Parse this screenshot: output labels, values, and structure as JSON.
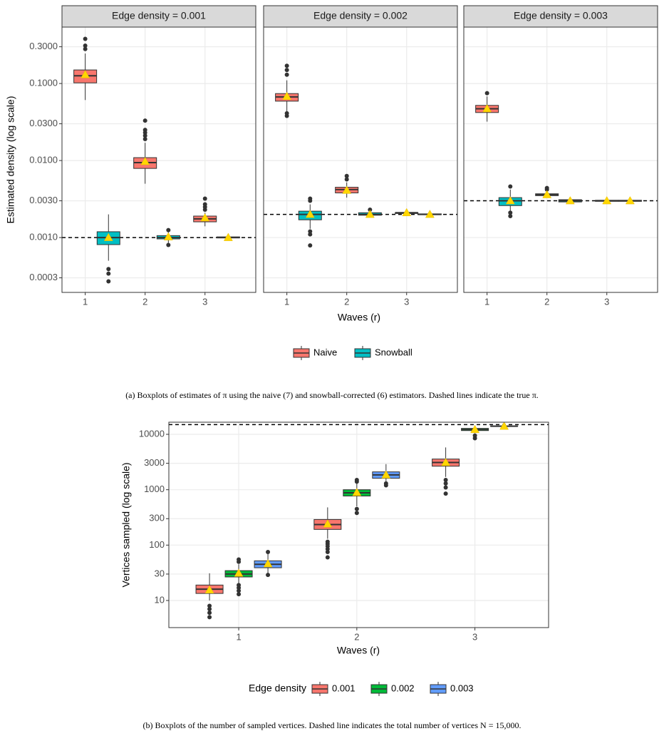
{
  "chart_data": [
    {
      "type": "boxplot",
      "log": true,
      "grid": true,
      "legend": "bottom",
      "y_label": "Estimated density (log scale)",
      "x_label": "Waves (r)",
      "caption": "(a) Boxplots of estimates of π using the naive (7) and snowball-corrected (6) estimators. Dashed lines indicate the true π.",
      "categories": [
        "1",
        "2",
        "3"
      ],
      "ylim": [
        0.000194,
        0.54
      ],
      "yticks": [
        {
          "value": 0.0003,
          "label": "0.0003"
        },
        {
          "value": 0.001,
          "label": "0.0010"
        },
        {
          "value": 0.003,
          "label": "0.0030"
        },
        {
          "value": 0.01,
          "label": "0.0100"
        },
        {
          "value": 0.03,
          "label": "0.0300"
        },
        {
          "value": 0.1,
          "label": "0.1000"
        },
        {
          "value": 0.3,
          "label": "0.3000"
        }
      ],
      "series": [
        {
          "name": "Naive",
          "color": "#F8766D"
        },
        {
          "name": "Snowball",
          "color": "#00BFC4"
        }
      ],
      "facets": [
        {
          "title": "Edge density = 0.001",
          "reference": 0.001,
          "values": [
            [
              {
                "min": 0.061,
                "q1": 0.102,
                "median": 0.126,
                "q3": 0.15,
                "max": 0.245,
                "mean": 0.13,
                "outliers": [
                  0.28,
                  0.31,
                  0.38
                ]
              },
              {
                "min": 0.005,
                "q1": 0.0079,
                "median": 0.0094,
                "q3": 0.0109,
                "max": 0.017,
                "mean": 0.0097,
                "outliers": [
                  0.019,
                  0.021,
                  0.023,
                  0.025,
                  0.033
                ]
              },
              {
                "min": 0.0014,
                "q1": 0.0016,
                "median": 0.00175,
                "q3": 0.0019,
                "max": 0.0021,
                "mean": 0.0018,
                "outliers": [
                  0.0023,
                  0.0025,
                  0.0027,
                  0.0032
                ]
              }
            ],
            [
              {
                "min": 0.0005,
                "q1": 0.00081,
                "median": 0.001,
                "q3": 0.00119,
                "max": 0.002,
                "mean": 0.001,
                "outliers": [
                  0.00027,
                  0.00034,
                  0.00039
                ]
              },
              {
                "min": 0.00085,
                "q1": 0.00096,
                "median": 0.001,
                "q3": 0.00106,
                "max": 0.0012,
                "mean": 0.00102,
                "outliers": [
                  0.0008,
                  0.00125
                ]
              },
              {
                "min": 0.00096,
                "q1": 0.00099,
                "median": 0.001,
                "q3": 0.00102,
                "max": 0.00106,
                "mean": 0.001,
                "outliers": []
              }
            ]
          ]
        },
        {
          "title": "Edge density = 0.002",
          "reference": 0.002,
          "values": [
            [
              {
                "min": 0.043,
                "q1": 0.059,
                "median": 0.067,
                "q3": 0.074,
                "max": 0.11,
                "mean": 0.068,
                "outliers": [
                  0.038,
                  0.041,
                  0.13,
                  0.15,
                  0.17
                ]
              },
              {
                "min": 0.0033,
                "q1": 0.0038,
                "median": 0.0042,
                "q3": 0.0045,
                "max": 0.0052,
                "mean": 0.0041,
                "outliers": [
                  0.0057,
                  0.0063
                ]
              },
              {
                "min": 0.002,
                "q1": 0.00205,
                "median": 0.0021,
                "q3": 0.0021,
                "max": 0.0022,
                "mean": 0.0021,
                "outliers": []
              }
            ],
            [
              {
                "min": 0.0013,
                "q1": 0.0017,
                "median": 0.002,
                "q3": 0.0022,
                "max": 0.0027,
                "mean": 0.002,
                "outliers": [
                  0.00079,
                  0.0011,
                  0.0012,
                  0.003,
                  0.0032
                ]
              },
              {
                "min": 0.00185,
                "q1": 0.00195,
                "median": 0.002,
                "q3": 0.0021,
                "max": 0.0022,
                "mean": 0.002,
                "outliers": [
                  0.0023
                ]
              },
              {
                "min": 0.00195,
                "q1": 0.00198,
                "median": 0.002,
                "q3": 0.00203,
                "max": 0.00207,
                "mean": 0.002,
                "outliers": []
              }
            ]
          ]
        },
        {
          "title": "Edge density = 0.003",
          "reference": 0.003,
          "values": [
            [
              {
                "min": 0.032,
                "q1": 0.042,
                "median": 0.047,
                "q3": 0.052,
                "max": 0.068,
                "mean": 0.047,
                "outliers": [
                  0.075
                ]
              },
              {
                "min": 0.0034,
                "q1": 0.0035,
                "median": 0.0036,
                "q3": 0.0037,
                "max": 0.004,
                "mean": 0.0036,
                "outliers": [
                  0.0042,
                  0.0044
                ]
              },
              {
                "min": 0.0029,
                "q1": 0.00295,
                "median": 0.003,
                "q3": 0.00305,
                "max": 0.0031,
                "mean": 0.003,
                "outliers": []
              }
            ],
            [
              {
                "min": 0.0022,
                "q1": 0.0026,
                "median": 0.003,
                "q3": 0.0033,
                "max": 0.0042,
                "mean": 0.003,
                "outliers": [
                  0.0019,
                  0.0021,
                  0.0046
                ]
              },
              {
                "min": 0.0028,
                "q1": 0.0029,
                "median": 0.003,
                "q3": 0.0031,
                "max": 0.0032,
                "mean": 0.003,
                "outliers": []
              },
              {
                "min": 0.0029,
                "q1": 0.00295,
                "median": 0.003,
                "q3": 0.00305,
                "max": 0.0031,
                "mean": 0.003,
                "outliers": []
              }
            ]
          ]
        }
      ]
    },
    {
      "type": "boxplot",
      "log": true,
      "grid": true,
      "legend": "bottom",
      "y_label": "Vertices sampled (log scale)",
      "x_label": "Waves (r)",
      "legend_title": "Edge density",
      "caption": "(b) Boxplots of the number of sampled vertices. Dashed line indicates the total number of vertices N = 15,000.",
      "categories": [
        "1",
        "2",
        "3"
      ],
      "reference": 15000,
      "ylim": [
        3.24,
        16560
      ],
      "yticks": [
        10,
        30,
        100,
        300,
        1000,
        3000,
        10000
      ],
      "series": [
        {
          "name": "0.001",
          "color": "#F8766D",
          "values": [
            {
              "min": 10,
              "q1": 13.4,
              "median": 16,
              "q3": 19,
              "max": 31,
              "mean": 15.5,
              "outliers": [
                5,
                6,
                7,
                8
              ]
            },
            {
              "min": 130,
              "q1": 192,
              "median": 235,
              "q3": 290,
              "max": 480,
              "mean": 240,
              "outliers": [
                60,
                75,
                85,
                95,
                105,
                115
              ]
            },
            {
              "min": 1700,
              "q1": 2660,
              "median": 3100,
              "q3": 3580,
              "max": 5800,
              "mean": 3100,
              "outliers": [
                850,
                1100,
                1300,
                1500
              ]
            }
          ]
        },
        {
          "name": "0.002",
          "color": "#00BA38",
          "values": [
            {
              "min": 20,
              "q1": 26.6,
              "median": 30,
              "q3": 34.6,
              "max": 45,
              "mean": 31,
              "outliers": [
                13,
                15,
                17,
                19,
                50,
                55
              ]
            },
            {
              "min": 500,
              "q1": 770,
              "median": 880,
              "q3": 1000,
              "max": 1350,
              "mean": 890,
              "outliers": [
                380,
                450,
                1400,
                1500
              ]
            },
            {
              "min": 10500,
              "q1": 11700,
              "median": 12200,
              "q3": 12800,
              "max": 13500,
              "mean": 12200,
              "outliers": [
                8500,
                9500
              ]
            }
          ]
        },
        {
          "name": "0.003",
          "color": "#619CFF",
          "values": [
            {
              "min": 30,
              "q1": 39,
              "median": 45,
              "q3": 52,
              "max": 70,
              "mean": 46,
              "outliers": [
                29,
                75
              ]
            },
            {
              "min": 1250,
              "q1": 1610,
              "median": 1850,
              "q3": 2100,
              "max": 2900,
              "mean": 1850,
              "outliers": [
                1200,
                1300
              ]
            },
            {
              "min": 13700,
              "q1": 13900,
              "median": 14000,
              "q3": 14200,
              "max": 14500,
              "mean": 14000,
              "outliers": []
            }
          ]
        }
      ]
    }
  ]
}
